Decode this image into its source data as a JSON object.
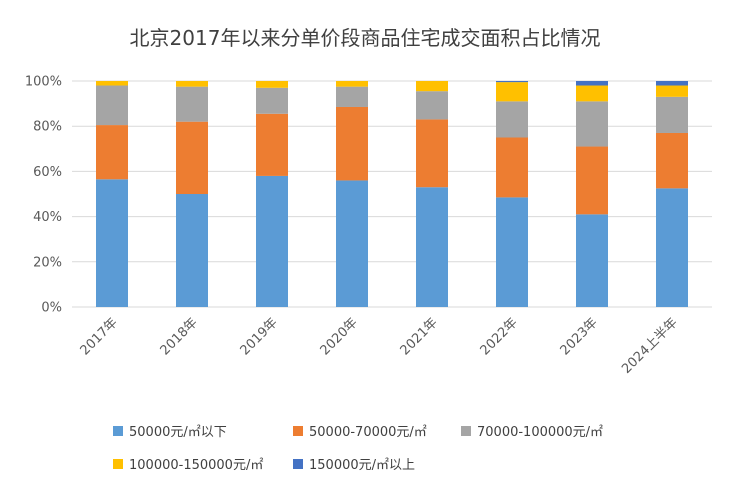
{
  "chart_data": {
    "type": "bar",
    "stacked": true,
    "percent": true,
    "title": "北京2017年以来分单价段商品住宅成交面积占比情况",
    "categories": [
      "2017年",
      "2018年",
      "2019年",
      "2020年",
      "2021年",
      "2022年",
      "2023年",
      "2024上半年"
    ],
    "y_ticks": [
      "0%",
      "20%",
      "40%",
      "60%",
      "80%",
      "100%"
    ],
    "ylim": [
      0,
      100
    ],
    "grid": true,
    "legend_position": "bottom",
    "series": [
      {
        "name": "50000元/㎡以下",
        "color": "#5b9bd5",
        "values": [
          56.5,
          50.0,
          58.0,
          56.0,
          53.0,
          48.5,
          41.0,
          52.5
        ]
      },
      {
        "name": "50000-70000元/㎡",
        "color": "#ed7d31",
        "values": [
          24.0,
          32.0,
          27.5,
          32.5,
          30.0,
          26.5,
          30.0,
          24.5
        ]
      },
      {
        "name": "70000-100000元/㎡",
        "color": "#a5a5a5",
        "values": [
          17.5,
          15.5,
          11.5,
          9.0,
          12.5,
          16.0,
          20.0,
          16.0
        ]
      },
      {
        "name": "100000-150000元/㎡",
        "color": "#ffc000",
        "values": [
          2.0,
          2.5,
          3.0,
          2.5,
          4.5,
          8.5,
          7.0,
          5.0
        ]
      },
      {
        "name": "150000元/㎡以上",
        "color": "#4472c4",
        "values": [
          0.0,
          0.0,
          0.0,
          0.0,
          0.0,
          0.5,
          2.0,
          2.0
        ]
      }
    ]
  }
}
